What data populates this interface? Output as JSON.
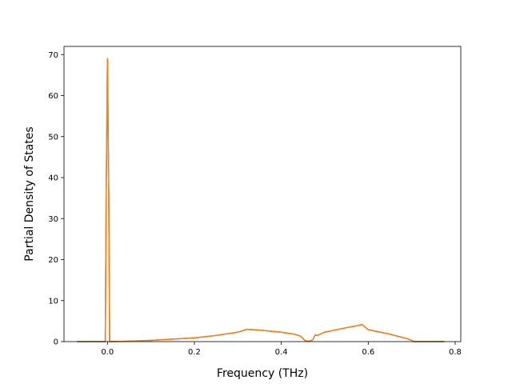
{
  "chart_data": {
    "type": "line",
    "xlabel": "Frequency (THz)",
    "ylabel": "Partial Density of States",
    "xlim": [
      -0.1,
      0.813
    ],
    "ylim": [
      0,
      72
    ],
    "xticks": [
      0.0,
      0.2,
      0.4,
      0.6,
      0.8
    ],
    "xtick_labels": [
      "0.0",
      "0.2",
      "0.4",
      "0.6",
      "0.8"
    ],
    "yticks": [
      0,
      10,
      20,
      30,
      40,
      50,
      60,
      70
    ],
    "ytick_labels": [
      "0",
      "10",
      "20",
      "30",
      "40",
      "50",
      "60",
      "70"
    ],
    "grid": false,
    "series": [
      {
        "color": "#1f77b4",
        "x": [
          -0.07,
          -0.005,
          -0.003,
          0.0,
          0.003,
          0.005,
          0.02,
          0.05,
          0.1,
          0.15,
          0.2,
          0.25,
          0.3,
          0.31,
          0.32,
          0.35,
          0.4,
          0.43,
          0.445,
          0.455,
          0.465,
          0.472,
          0.478,
          0.483,
          0.5,
          0.55,
          0.58,
          0.585,
          0.59,
          0.6,
          0.65,
          0.69,
          0.7,
          0.705,
          0.74,
          0.775
        ],
        "y": [
          0,
          0,
          35,
          69,
          35,
          0,
          0.02,
          0.1,
          0.3,
          0.6,
          0.9,
          1.5,
          2.3,
          2.6,
          3.0,
          2.8,
          2.3,
          1.8,
          1.3,
          0.2,
          0.1,
          0.4,
          1.6,
          1.5,
          2.3,
          3.4,
          4.0,
          4.2,
          3.8,
          2.9,
          1.8,
          0.7,
          0.3,
          0,
          0,
          0
        ]
      },
      {
        "color": "#ff7f0e",
        "x": [
          -0.07,
          -0.005,
          -0.003,
          0.0,
          0.003,
          0.005,
          0.02,
          0.05,
          0.1,
          0.15,
          0.2,
          0.25,
          0.3,
          0.31,
          0.32,
          0.35,
          0.4,
          0.43,
          0.445,
          0.455,
          0.465,
          0.472,
          0.478,
          0.483,
          0.5,
          0.55,
          0.58,
          0.585,
          0.59,
          0.6,
          0.65,
          0.69,
          0.7,
          0.705,
          0.74,
          0.775
        ],
        "y": [
          0,
          0,
          35,
          69,
          35,
          0,
          0.02,
          0.1,
          0.3,
          0.6,
          0.9,
          1.5,
          2.3,
          2.6,
          3.0,
          2.8,
          2.3,
          1.8,
          1.3,
          0.2,
          0.1,
          0.4,
          1.6,
          1.5,
          2.3,
          3.4,
          4.0,
          4.2,
          3.8,
          2.9,
          1.8,
          0.7,
          0.3,
          0,
          0,
          0
        ]
      }
    ]
  }
}
